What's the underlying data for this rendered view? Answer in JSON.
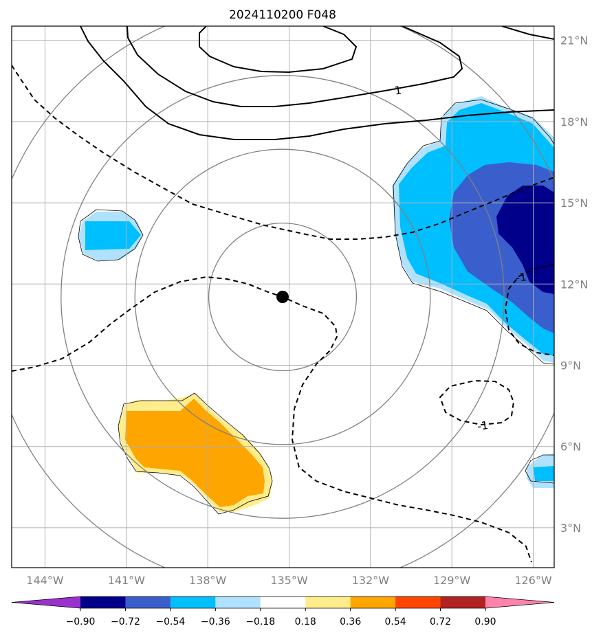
{
  "chart_data": {
    "type": "heatmap",
    "title": "2024110200 F048",
    "xlabel": "",
    "ylabel": "",
    "xlim": [
      -145,
      -125
    ],
    "ylim": [
      1.5,
      21.5
    ],
    "grid": true,
    "x_ticks": [
      {
        "value": -144,
        "label": "144°W"
      },
      {
        "value": -141,
        "label": "141°W"
      },
      {
        "value": -138,
        "label": "138°W"
      },
      {
        "value": -135,
        "label": "135°W"
      },
      {
        "value": -132,
        "label": "132°W"
      },
      {
        "value": -129,
        "label": "129°W"
      },
      {
        "value": -126,
        "label": "126°W"
      }
    ],
    "y_ticks": [
      {
        "value": 3,
        "label": "3°N"
      },
      {
        "value": 6,
        "label": "6°N"
      },
      {
        "value": 9,
        "label": "9°N"
      },
      {
        "value": 12,
        "label": "12°N"
      },
      {
        "value": 15,
        "label": "15°N"
      },
      {
        "value": 18,
        "label": "18°N"
      },
      {
        "value": 21,
        "label": "21°N"
      }
    ],
    "center": {
      "lon": -134.8,
      "lat": 11.25
    },
    "range_rings_deg": [
      2.75,
      5.5,
      8.25,
      11.0
    ],
    "colorbar": {
      "boundaries": [
        "−0.90",
        "−0.72",
        "−0.54",
        "−0.36",
        "−0.18",
        "0.18",
        "0.36",
        "0.54",
        "0.72",
        "0.90"
      ],
      "colors": [
        "#9932CC",
        "#00008B",
        "#3A5FCD",
        "#00BFFF",
        "#B0E2FF",
        "#FFFFFF",
        "#FFEC8B",
        "#FFA500",
        "#FF4500",
        "#B22222",
        "#FF82AB"
      ],
      "extend": "both"
    },
    "contour_labels": [
      {
        "text": "1",
        "lon": -130.4,
        "lat": 18.9
      },
      {
        "text": "-1",
        "lon": -127.5,
        "lat": 6.5
      },
      {
        "text": "-1",
        "lon": -125.9,
        "lat": 11.9
      }
    ],
    "shaded_regions": [
      {
        "name": "east-negative",
        "level": "−0.54 to −0.36",
        "center": [
          -127.5,
          13.5
        ]
      },
      {
        "name": "east-core",
        "level": "< −0.72",
        "center": [
          -125.5,
          13.2
        ]
      },
      {
        "name": "west-small",
        "level": "−0.54 to −0.36",
        "center": [
          -140.9,
          13.6
        ]
      },
      {
        "name": "southwest-positive",
        "level": "0.36 to 0.54",
        "center": [
          -137.5,
          5.8
        ]
      },
      {
        "name": "southeast-small",
        "level": "−0.54 to −0.36",
        "center": [
          -125.6,
          4.8
        ]
      }
    ]
  }
}
